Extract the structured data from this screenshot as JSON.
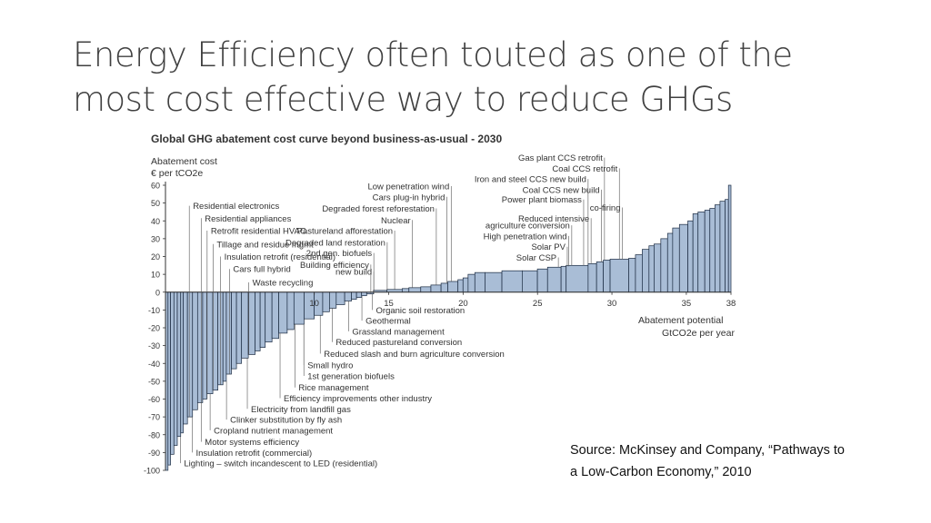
{
  "slide": {
    "title_line1": "Energy Efficiency often touted as one of the",
    "title_line2": "most cost effective way to reduce GHGs",
    "source_line1": "Source: McKinsey and Company, “Pathways to",
    "source_line2": "a Low-Carbon Economy,” 2010"
  },
  "chart_data": {
    "type": "bar",
    "title": "Global GHG abatement cost curve beyond business-as-usual - 2030",
    "ylabel": "Abatement cost",
    "ylabel_unit": "€ per tCO2e",
    "xlabel": "Abatement potential",
    "xlabel_unit": "GtCO2e per year",
    "xlim": [
      0,
      38
    ],
    "ylim": [
      -100,
      60
    ],
    "x_ticks": [
      10,
      15,
      20,
      25,
      30,
      35,
      38
    ],
    "y_ticks": [
      60,
      50,
      40,
      30,
      20,
      10,
      0,
      -10,
      -20,
      -30,
      -40,
      -50,
      -60,
      -70,
      -80,
      -90,
      -100
    ],
    "grid": false,
    "bar_color": "#a9bdd6",
    "bar_edge_color": "#1a2a40",
    "bars": [
      {
        "width": 0.15,
        "cost": -100
      },
      {
        "width": 0.15,
        "cost": -97
      },
      {
        "width": 0.2,
        "cost": -91
      },
      {
        "width": 0.2,
        "cost": -86
      },
      {
        "width": 0.2,
        "cost": -81
      },
      {
        "width": 0.15,
        "cost": -79
      },
      {
        "width": 0.25,
        "cost": -74
      },
      {
        "width": 0.3,
        "cost": -70
      },
      {
        "width": 0.3,
        "cost": -66
      },
      {
        "width": 0.3,
        "cost": -62
      },
      {
        "width": 0.25,
        "cost": -60
      },
      {
        "width": 0.35,
        "cost": -57
      },
      {
        "width": 0.3,
        "cost": -55
      },
      {
        "width": 0.3,
        "cost": -52
      },
      {
        "width": 0.2,
        "cost": -50
      },
      {
        "width": 0.3,
        "cost": -46
      },
      {
        "width": 0.3,
        "cost": -43
      },
      {
        "width": 0.3,
        "cost": -40
      },
      {
        "width": 0.4,
        "cost": -37
      },
      {
        "width": 0.4,
        "cost": -35
      },
      {
        "width": 0.3,
        "cost": -33
      },
      {
        "width": 0.3,
        "cost": -31
      },
      {
        "width": 0.4,
        "cost": -28
      },
      {
        "width": 0.4,
        "cost": -26
      },
      {
        "width": 0.5,
        "cost": -23
      },
      {
        "width": 0.4,
        "cost": -21
      },
      {
        "width": 0.6,
        "cost": -18
      },
      {
        "width": 0.6,
        "cost": -15
      },
      {
        "width": 0.5,
        "cost": -13
      },
      {
        "width": 0.4,
        "cost": -11
      },
      {
        "width": 0.4,
        "cost": -9
      },
      {
        "width": 0.5,
        "cost": -7
      },
      {
        "width": 0.4,
        "cost": -5
      },
      {
        "width": 0.3,
        "cost": -4
      },
      {
        "width": 0.3,
        "cost": -3
      },
      {
        "width": 0.3,
        "cost": -2
      },
      {
        "width": 0.4,
        "cost": -1
      },
      {
        "width": 0.8,
        "cost": 1
      },
      {
        "width": 0.9,
        "cost": 1.5
      },
      {
        "width": 0.4,
        "cost": 2
      },
      {
        "width": 0.7,
        "cost": 2.5
      },
      {
        "width": 0.6,
        "cost": 3
      },
      {
        "width": 0.6,
        "cost": 4
      },
      {
        "width": 0.4,
        "cost": 5
      },
      {
        "width": 0.6,
        "cost": 6
      },
      {
        "width": 0.3,
        "cost": 7
      },
      {
        "width": 0.3,
        "cost": 8
      },
      {
        "width": 0.4,
        "cost": 10
      },
      {
        "width": 0.6,
        "cost": 11
      },
      {
        "width": 1.0,
        "cost": 11
      },
      {
        "width": 1.2,
        "cost": 12
      },
      {
        "width": 0.9,
        "cost": 12
      },
      {
        "width": 0.6,
        "cost": 13
      },
      {
        "width": 0.8,
        "cost": 14
      },
      {
        "width": 0.3,
        "cost": 14.5
      },
      {
        "width": 1.3,
        "cost": 15
      },
      {
        "width": 0.5,
        "cost": 16
      },
      {
        "width": 0.4,
        "cost": 17
      },
      {
        "width": 0.4,
        "cost": 18
      },
      {
        "width": 1.1,
        "cost": 18.5
      },
      {
        "width": 0.4,
        "cost": 19
      },
      {
        "width": 0.4,
        "cost": 21
      },
      {
        "width": 0.4,
        "cost": 24
      },
      {
        "width": 0.3,
        "cost": 26
      },
      {
        "width": 0.4,
        "cost": 27
      },
      {
        "width": 0.4,
        "cost": 30
      },
      {
        "width": 0.3,
        "cost": 33
      },
      {
        "width": 0.4,
        "cost": 36
      },
      {
        "width": 0.5,
        "cost": 38
      },
      {
        "width": 0.3,
        "cost": 40
      },
      {
        "width": 0.3,
        "cost": 44
      },
      {
        "width": 0.4,
        "cost": 45
      },
      {
        "width": 0.3,
        "cost": 46
      },
      {
        "width": 0.3,
        "cost": 47
      },
      {
        "width": 0.3,
        "cost": 49
      },
      {
        "width": 0.3,
        "cost": 51
      },
      {
        "width": 0.2,
        "cost": 52
      },
      {
        "width": 0.15,
        "cost": 60
      }
    ],
    "labels_negative": [
      {
        "text": "Residential electronics",
        "x": 1.6,
        "y": 48.5
      },
      {
        "text": "Residential appliances",
        "x": 2.4,
        "y": 41.5
      },
      {
        "text": "Retrofit residential HVAC",
        "x": 2.8,
        "y": 34.5
      },
      {
        "text": "Tillage and residue mgmt",
        "x": 3.2,
        "y": 27
      },
      {
        "text": "Insulation retrofit (residential)",
        "x": 3.7,
        "y": 20
      },
      {
        "text": "Cars full hybrid",
        "x": 4.3,
        "y": 13
      },
      {
        "text": "Waste recycling",
        "x": 5.6,
        "y": 5.5
      },
      {
        "text": "Electricity from landfill gas",
        "x": 5.5,
        "y": -65.5
      },
      {
        "text": "Efficiency improvements other industry",
        "x": 7.7,
        "y": -59.5
      },
      {
        "text": "Rice management",
        "x": 8.7,
        "y": -53.5
      },
      {
        "text": "1st generation biofuels",
        "x": 9.3,
        "y": -47
      },
      {
        "text": "Small hydro",
        "x": 9.3,
        "y": -41
      },
      {
        "text": "Reduced slash and burn agriculture conversion",
        "x": 10.4,
        "y": -34.5
      },
      {
        "text": "Reduced pastureland conversion",
        "x": 11.2,
        "y": -28
      },
      {
        "text": "Grassland management",
        "x": 12.3,
        "y": -22
      },
      {
        "text": "Geothermal",
        "x": 13.2,
        "y": -16
      },
      {
        "text": "Organic soil restoration",
        "x": 13.9,
        "y": -10
      },
      {
        "text": "Clinker substitution by fly ash",
        "x": 4.1,
        "y": -71.5
      },
      {
        "text": "Cropland nutrient management",
        "x": 3.0,
        "y": -77.5
      },
      {
        "text": "Motor systems efficiency",
        "x": 2.4,
        "y": -84
      },
      {
        "text": "Insulation retrofit (commercial)",
        "x": 1.8,
        "y": -90
      },
      {
        "text": "Lighting – switch incandescent to LED (residential)",
        "x": 1.0,
        "y": -96
      }
    ],
    "labels_positive": [
      {
        "text": "Low penetration wind",
        "x": 19.2,
        "y": 59.5
      },
      {
        "text": "Cars plug-in hybrid",
        "x": 18.9,
        "y": 53.5
      },
      {
        "text": "Degraded forest reforestation",
        "x": 18.2,
        "y": 47
      },
      {
        "text": "Nuclear",
        "x": 16.6,
        "y": 40.5
      },
      {
        "text": "Pastureland afforestation",
        "x": 15.4,
        "y": 34.5
      },
      {
        "text": "Degraded land restoration",
        "x": 14.9,
        "y": 28
      },
      {
        "text": "2nd gen. biofuels",
        "x": 14.0,
        "y": 22
      },
      {
        "text": "Building efficiency",
        "x": 13.8,
        "y": 15.5
      },
      {
        "text": "new build",
        "x": 14.0,
        "y": 11.5
      },
      {
        "text": "Gas plant CCS retrofit",
        "x": 29.5,
        "y": 75.5
      },
      {
        "text": "Coal CCS retrofit",
        "x": 30.5,
        "y": 69.5
      },
      {
        "text": "Iron and steel CCS new build",
        "x": 28.4,
        "y": 63.5
      },
      {
        "text": "Coal CCS new build",
        "x": 29.3,
        "y": 57.5
      },
      {
        "text": "Power plant biomass",
        "x": 28.1,
        "y": 52
      },
      {
        "text": "co-firing",
        "x": 30.7,
        "y": 47.5
      },
      {
        "text": "Reduced intensive",
        "x": 28.6,
        "y": 41.5
      },
      {
        "text": "agriculture conversion",
        "x": 27.3,
        "y": 37.5
      },
      {
        "text": "High penetration wind",
        "x": 27.1,
        "y": 31.5
      },
      {
        "text": "Solar PV",
        "x": 27.0,
        "y": 25.5
      },
      {
        "text": "Solar CSP",
        "x": 26.4,
        "y": 19.5
      }
    ]
  }
}
